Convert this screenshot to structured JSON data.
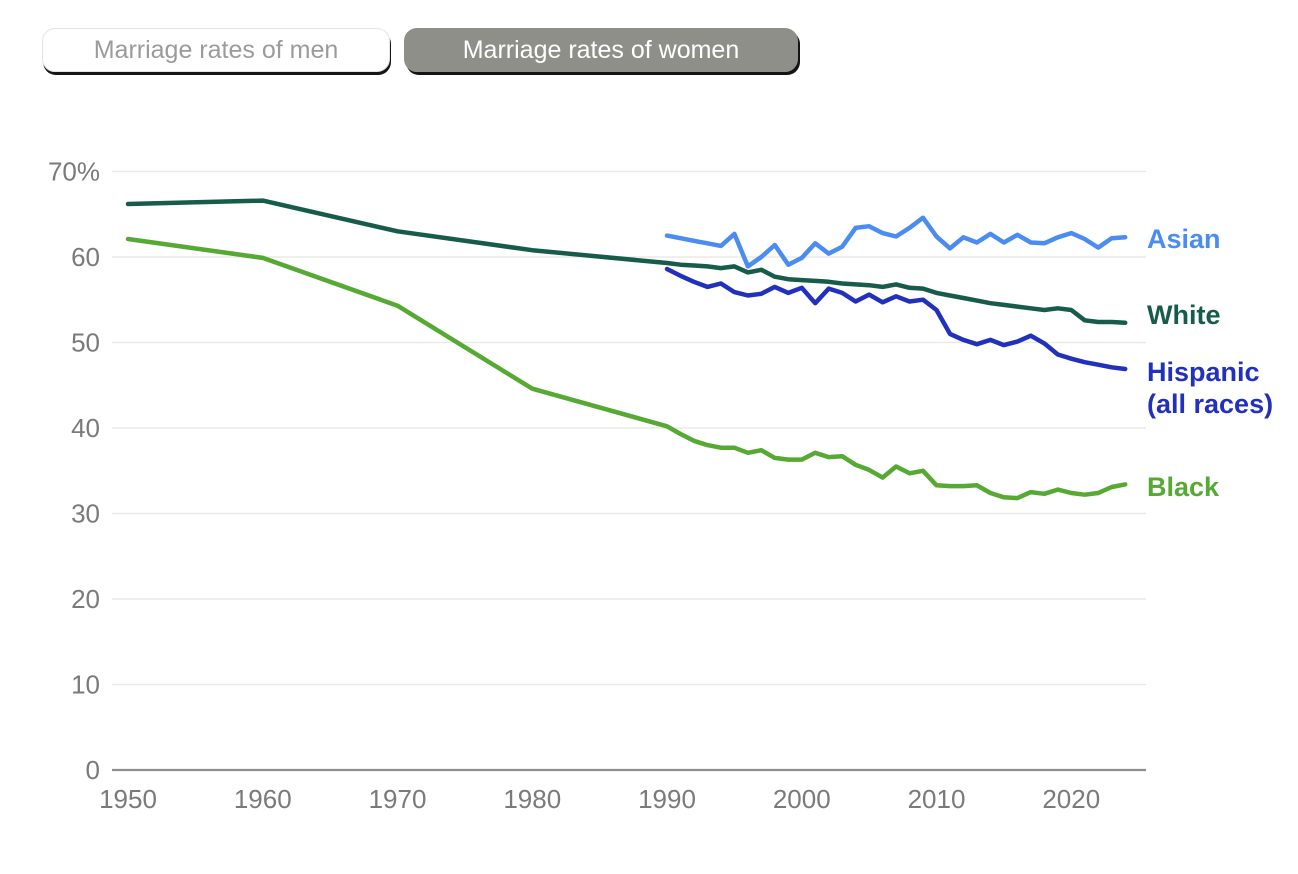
{
  "toggles": {
    "men_label": "Marriage rates of men",
    "women_label": "Marriage rates of women",
    "selected": "women"
  },
  "chart_data": {
    "type": "line",
    "title": "",
    "xlabel": "",
    "ylabel": "",
    "x_range": [
      1950,
      2024
    ],
    "y_range": [
      0,
      70
    ],
    "grid": "horizontal",
    "legend_position": "right",
    "style": {
      "grid_color": "#eaeae6",
      "axis_color": "#8f8f8f",
      "tick_color": "#7a7a7a"
    },
    "y_ticks": [
      {
        "value": 70,
        "label": "70%"
      },
      {
        "value": 60,
        "label": "60"
      },
      {
        "value": 50,
        "label": "50"
      },
      {
        "value": 40,
        "label": "40"
      },
      {
        "value": 30,
        "label": "30"
      },
      {
        "value": 20,
        "label": "20"
      },
      {
        "value": 10,
        "label": "10"
      },
      {
        "value": 0,
        "label": "0"
      }
    ],
    "x_ticks": [
      {
        "value": 1950,
        "label": "1950"
      },
      {
        "value": 1960,
        "label": "1960"
      },
      {
        "value": 1970,
        "label": "1970"
      },
      {
        "value": 1980,
        "label": "1980"
      },
      {
        "value": 1990,
        "label": "1990"
      },
      {
        "value": 2000,
        "label": "2000"
      },
      {
        "value": 2010,
        "label": "2010"
      },
      {
        "value": 2020,
        "label": "2020"
      }
    ],
    "series": [
      {
        "key": "white",
        "name": "White",
        "color": "#175c4b",
        "points": [
          [
            1950,
            66.2
          ],
          [
            1960,
            66.6
          ],
          [
            1970,
            63.0
          ],
          [
            1980,
            60.8
          ],
          [
            1990,
            59.3
          ],
          [
            1991,
            59.1
          ],
          [
            1992,
            59.0
          ],
          [
            1993,
            58.9
          ],
          [
            1994,
            58.7
          ],
          [
            1995,
            58.9
          ],
          [
            1996,
            58.2
          ],
          [
            1997,
            58.5
          ],
          [
            1998,
            57.7
          ],
          [
            1999,
            57.4
          ],
          [
            2000,
            57.3
          ],
          [
            2001,
            57.2
          ],
          [
            2002,
            57.1
          ],
          [
            2003,
            56.9
          ],
          [
            2004,
            56.8
          ],
          [
            2005,
            56.7
          ],
          [
            2006,
            56.5
          ],
          [
            2007,
            56.8
          ],
          [
            2008,
            56.4
          ],
          [
            2009,
            56.3
          ],
          [
            2010,
            55.8
          ],
          [
            2011,
            55.5
          ],
          [
            2012,
            55.2
          ],
          [
            2013,
            54.9
          ],
          [
            2014,
            54.6
          ],
          [
            2015,
            54.4
          ],
          [
            2016,
            54.2
          ],
          [
            2017,
            54.0
          ],
          [
            2018,
            53.8
          ],
          [
            2019,
            54.0
          ],
          [
            2020,
            53.8
          ],
          [
            2021,
            52.6
          ],
          [
            2022,
            52.4
          ],
          [
            2023,
            52.4
          ],
          [
            2024,
            52.3
          ]
        ]
      },
      {
        "key": "black",
        "name": "Black",
        "color": "#56a932",
        "points": [
          [
            1950,
            62.1
          ],
          [
            1960,
            59.9
          ],
          [
            1970,
            54.3
          ],
          [
            1980,
            44.6
          ],
          [
            1990,
            40.2
          ],
          [
            1991,
            39.3
          ],
          [
            1992,
            38.5
          ],
          [
            1993,
            38.0
          ],
          [
            1994,
            37.7
          ],
          [
            1995,
            37.7
          ],
          [
            1996,
            37.1
          ],
          [
            1997,
            37.4
          ],
          [
            1998,
            36.5
          ],
          [
            1999,
            36.3
          ],
          [
            2000,
            36.3
          ],
          [
            2001,
            37.1
          ],
          [
            2002,
            36.6
          ],
          [
            2003,
            36.7
          ],
          [
            2004,
            35.7
          ],
          [
            2005,
            35.1
          ],
          [
            2006,
            34.2
          ],
          [
            2007,
            35.5
          ],
          [
            2008,
            34.7
          ],
          [
            2009,
            35.0
          ],
          [
            2010,
            33.3
          ],
          [
            2011,
            33.2
          ],
          [
            2012,
            33.2
          ],
          [
            2013,
            33.3
          ],
          [
            2014,
            32.4
          ],
          [
            2015,
            31.9
          ],
          [
            2016,
            31.8
          ],
          [
            2017,
            32.5
          ],
          [
            2018,
            32.3
          ],
          [
            2019,
            32.8
          ],
          [
            2020,
            32.4
          ],
          [
            2021,
            32.2
          ],
          [
            2022,
            32.4
          ],
          [
            2023,
            33.1
          ],
          [
            2024,
            33.4
          ]
        ]
      },
      {
        "key": "hispanic",
        "name": "Hispanic (all races)",
        "legend_lines": [
          "Hispanic",
          "(all races)"
        ],
        "color": "#2130bd",
        "points": [
          [
            1990,
            58.6
          ],
          [
            1991,
            57.8
          ],
          [
            1992,
            57.1
          ],
          [
            1993,
            56.5
          ],
          [
            1994,
            56.9
          ],
          [
            1995,
            55.9
          ],
          [
            1996,
            55.5
          ],
          [
            1997,
            55.7
          ],
          [
            1998,
            56.5
          ],
          [
            1999,
            55.8
          ],
          [
            2000,
            56.4
          ],
          [
            2001,
            54.6
          ],
          [
            2002,
            56.3
          ],
          [
            2003,
            55.8
          ],
          [
            2004,
            54.8
          ],
          [
            2005,
            55.6
          ],
          [
            2006,
            54.7
          ],
          [
            2007,
            55.4
          ],
          [
            2008,
            54.8
          ],
          [
            2009,
            55.0
          ],
          [
            2010,
            53.8
          ],
          [
            2011,
            51.0
          ],
          [
            2012,
            50.3
          ],
          [
            2013,
            49.8
          ],
          [
            2014,
            50.3
          ],
          [
            2015,
            49.7
          ],
          [
            2016,
            50.1
          ],
          [
            2017,
            50.8
          ],
          [
            2018,
            49.9
          ],
          [
            2019,
            48.6
          ],
          [
            2020,
            48.1
          ],
          [
            2021,
            47.7
          ],
          [
            2022,
            47.4
          ],
          [
            2023,
            47.1
          ],
          [
            2024,
            46.9
          ]
        ]
      },
      {
        "key": "asian",
        "name": "Asian",
        "color": "#4b8cf2",
        "points": [
          [
            1990,
            62.5
          ],
          [
            1991,
            62.2
          ],
          [
            1992,
            61.9
          ],
          [
            1993,
            61.6
          ],
          [
            1994,
            61.3
          ],
          [
            1995,
            62.7
          ],
          [
            1996,
            58.9
          ],
          [
            1997,
            60.0
          ],
          [
            1998,
            61.4
          ],
          [
            1999,
            59.1
          ],
          [
            2000,
            59.9
          ],
          [
            2001,
            61.6
          ],
          [
            2002,
            60.4
          ],
          [
            2003,
            61.2
          ],
          [
            2004,
            63.4
          ],
          [
            2005,
            63.6
          ],
          [
            2006,
            62.8
          ],
          [
            2007,
            62.4
          ],
          [
            2008,
            63.4
          ],
          [
            2009,
            64.6
          ],
          [
            2010,
            62.4
          ],
          [
            2011,
            61.0
          ],
          [
            2012,
            62.3
          ],
          [
            2013,
            61.7
          ],
          [
            2014,
            62.7
          ],
          [
            2015,
            61.7
          ],
          [
            2016,
            62.6
          ],
          [
            2017,
            61.7
          ],
          [
            2018,
            61.6
          ],
          [
            2019,
            62.3
          ],
          [
            2020,
            62.8
          ],
          [
            2021,
            62.1
          ],
          [
            2022,
            61.1
          ],
          [
            2023,
            62.2
          ],
          [
            2024,
            62.3
          ]
        ]
      }
    ]
  }
}
